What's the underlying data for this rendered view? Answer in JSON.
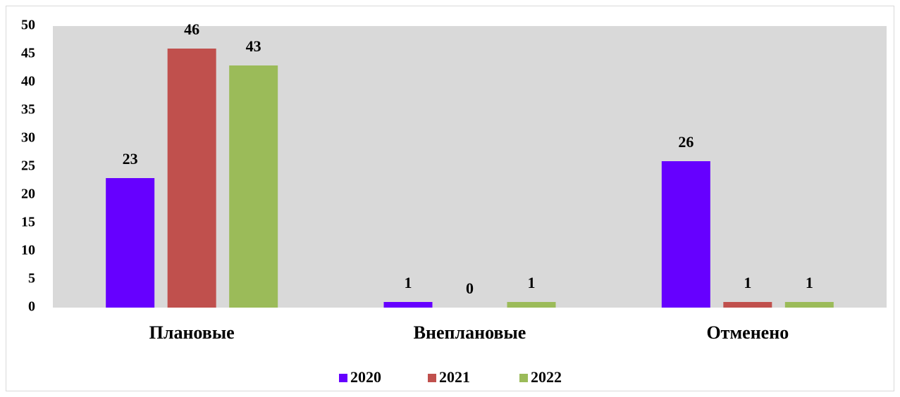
{
  "chart_data": {
    "type": "bar",
    "categories": [
      "Плановые",
      "Внеплановые",
      "Отменено"
    ],
    "series": [
      {
        "name": "2020",
        "color": "#6600ff",
        "values": [
          23,
          1,
          26
        ]
      },
      {
        "name": "2021",
        "color": "#c0504d",
        "values": [
          46,
          0,
          1
        ]
      },
      {
        "name": "2022",
        "color": "#9bbb59",
        "values": [
          43,
          1,
          1
        ]
      }
    ],
    "ylim": [
      0,
      50
    ],
    "yticks": [
      0,
      5,
      10,
      15,
      20,
      25,
      30,
      35,
      40,
      45,
      50
    ],
    "legend": "bottom"
  }
}
